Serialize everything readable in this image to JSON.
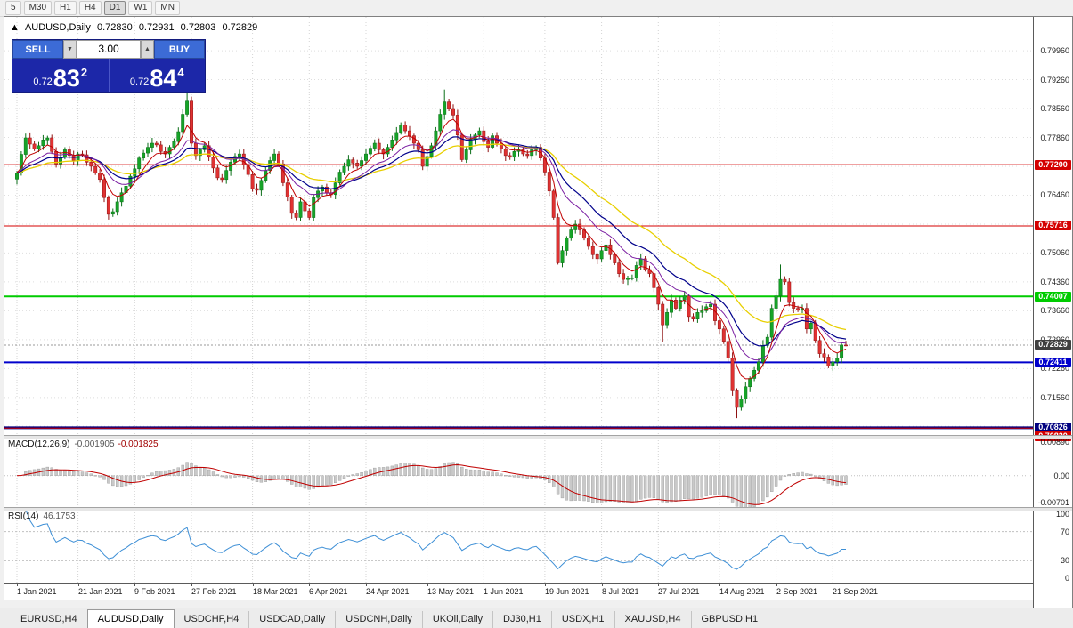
{
  "toolbar": {
    "periods": [
      "5",
      "M30",
      "H1",
      "H4",
      "D1",
      "W1",
      "MN"
    ],
    "active": "D1"
  },
  "chart": {
    "title": {
      "arrow": "▲",
      "symbol": "AUDUSD,Daily",
      "o": "0.72830",
      "h": "0.72931",
      "l": "0.72803",
      "c": "0.72829"
    },
    "trade_panel": {
      "sell_label": "SELL",
      "buy_label": "BUY",
      "volume": "3.00",
      "spin_down": "▼",
      "spin_up": "▲",
      "bid": {
        "prefix": "0.72",
        "big": "83",
        "sup": "2"
      },
      "ask": {
        "prefix": "0.72",
        "big": "84",
        "sup": "4"
      }
    }
  },
  "chart_data": {
    "type": "candlestick",
    "symbol": "AUDUSD",
    "timeframe": "Daily",
    "price_scale": {
      "max": 0.8078,
      "min": 0.70652,
      "grid_start": 0.7996,
      "grid_step": 0.007,
      "decimals": 5
    },
    "first_open": 0.7685,
    "closes": [
      0.77,
      0.7745,
      0.7785,
      0.777,
      0.7758,
      0.7766,
      0.778,
      0.7785,
      0.7752,
      0.7722,
      0.7738,
      0.7756,
      0.7742,
      0.773,
      0.7746,
      0.7744,
      0.7726,
      0.7716,
      0.77,
      0.7684,
      0.764,
      0.76,
      0.7606,
      0.763,
      0.7652,
      0.7668,
      0.7692,
      0.771,
      0.7736,
      0.7748,
      0.7762,
      0.7772,
      0.7768,
      0.7752,
      0.7746,
      0.7762,
      0.7776,
      0.78,
      0.7842,
      0.7876,
      0.7772,
      0.7742,
      0.7756,
      0.7766,
      0.7738,
      0.7712,
      0.7688,
      0.7684,
      0.7706,
      0.7726,
      0.774,
      0.7746,
      0.772,
      0.7696,
      0.7662,
      0.7658,
      0.7682,
      0.7706,
      0.773,
      0.7746,
      0.7722,
      0.7676,
      0.7642,
      0.7602,
      0.7592,
      0.763,
      0.7608,
      0.7592,
      0.764,
      0.7656,
      0.7666,
      0.7652,
      0.7648,
      0.7676,
      0.7702,
      0.7716,
      0.7732,
      0.7724,
      0.7716,
      0.773,
      0.7746,
      0.776,
      0.7772,
      0.7756,
      0.7746,
      0.7762,
      0.778,
      0.7798,
      0.7816,
      0.7802,
      0.779,
      0.7772,
      0.7756,
      0.7716,
      0.774,
      0.7766,
      0.7802,
      0.7842,
      0.7872,
      0.7856,
      0.784,
      0.7792,
      0.7732,
      0.7756,
      0.7782,
      0.7792,
      0.7802,
      0.7776,
      0.7762,
      0.779,
      0.7772,
      0.7758,
      0.7742,
      0.7738,
      0.7752,
      0.7756,
      0.7746,
      0.7742,
      0.7756,
      0.7762,
      0.7736,
      0.7702,
      0.7656,
      0.7592,
      0.7482,
      0.7512,
      0.7542,
      0.7562,
      0.7576,
      0.7562,
      0.7542,
      0.7522,
      0.7502,
      0.7492,
      0.7512,
      0.7526,
      0.7502,
      0.7482,
      0.7456,
      0.7442,
      0.7446,
      0.7446,
      0.7476,
      0.7492,
      0.7466,
      0.7456,
      0.7422,
      0.7382,
      0.7332,
      0.7362,
      0.7392,
      0.7372,
      0.7392,
      0.7402,
      0.7352,
      0.7346,
      0.7362,
      0.7366,
      0.7376,
      0.7382,
      0.7342,
      0.7322,
      0.7292,
      0.7252,
      0.7172,
      0.7132,
      0.7152,
      0.7182,
      0.7202,
      0.7222,
      0.7242,
      0.7282,
      0.7302,
      0.7372,
      0.7402,
      0.7442,
      0.7436,
      0.7386,
      0.7372,
      0.7368,
      0.7372,
      0.7322,
      0.7336,
      0.7294,
      0.7262,
      0.7254,
      0.7232,
      0.7242,
      0.7252,
      0.7283,
      0.72829
    ],
    "overrides": {
      "39": {
        "h": 0.79
      },
      "98": {
        "h": 0.7902
      },
      "124": {
        "l": 0.7478
      },
      "148": {
        "l": 0.729
      },
      "165": {
        "l": 0.7106
      },
      "175": {
        "h": 0.7478
      },
      "187": {
        "l": 0.722
      },
      "190": {
        "o": 0.7283,
        "h": 0.72931,
        "l": 0.72803,
        "c": 0.72829
      }
    },
    "hlines": [
      {
        "price": 0.772,
        "label": "0.77200",
        "color": "#d40000",
        "width": 1
      },
      {
        "price": 0.75716,
        "label": "0.75716",
        "color": "#d40000",
        "width": 1
      },
      {
        "price": 0.74007,
        "label": "0.74007",
        "color": "#00cc00",
        "width": 2
      },
      {
        "price": 0.72411,
        "label": "0.72411",
        "color": "#0000cc",
        "width": 2
      },
      {
        "price": 0.70826,
        "label": "0.70826",
        "color": "#000080",
        "width": 3
      },
      {
        "price": 0.7082,
        "label": "0.70820",
        "color": "#d40000",
        "width": 1
      }
    ],
    "current_price": {
      "value": 0.72829,
      "label": "0.72829",
      "badge_color": "#404040"
    },
    "mas": [
      {
        "period": 34,
        "color": "#e8cf00",
        "width": 1.3
      },
      {
        "period": 20,
        "color": "#00008b",
        "width": 1.2
      },
      {
        "period": 13,
        "color": "#7b1fa2",
        "width": 1
      },
      {
        "period": 6,
        "color": "#c00000",
        "width": 1
      }
    ],
    "colors": {
      "up": "#16a428",
      "up_edge": "#0b6e18",
      "down": "#e03232",
      "down_edge": "#8f1212",
      "grid": "#dedede",
      "vgrid": "#d4d4d4",
      "macd_hist": "#c9c9c9",
      "macd_hist_edge": "#9a9a9a",
      "macd_signal": "#c00000",
      "rsi_line": "#3d8fd6",
      "level_line": "#c0c0c0"
    },
    "x_labels": [
      {
        "day": 0,
        "text": "1 Jan 2021"
      },
      {
        "day": 14,
        "text": "21 Jan 2021"
      },
      {
        "day": 27,
        "text": "9 Feb 2021"
      },
      {
        "day": 40,
        "text": "27 Feb 2021"
      },
      {
        "day": 54,
        "text": "18 Mar 2021"
      },
      {
        "day": 67,
        "text": "6 Apr 2021"
      },
      {
        "day": 80,
        "text": "24 Apr 2021"
      },
      {
        "day": 94,
        "text": "13 May 2021"
      },
      {
        "day": 107,
        "text": "1 Jun 2021"
      },
      {
        "day": 121,
        "text": "19 Jun 2021"
      },
      {
        "day": 134,
        "text": "8 Jul 2021"
      },
      {
        "day": 147,
        "text": "27 Jul 2021"
      },
      {
        "day": 161,
        "text": "14 Aug 2021"
      },
      {
        "day": 174,
        "text": "2 Sep 2021"
      },
      {
        "day": 187,
        "text": "21 Sep 2021"
      }
    ],
    "macd": {
      "label": "MACD(12,26,9)",
      "value1": "-0.001905",
      "value2": "-0.001825",
      "fast": 12,
      "slow": 26,
      "signal": 9,
      "max": 0.009,
      "min": -0.0074,
      "axis": [
        {
          "v": 0.0089,
          "t": "0.00890"
        },
        {
          "v": 0,
          "t": "0.00"
        },
        {
          "v": -0.00701,
          "t": "-0.00701"
        }
      ]
    },
    "rsi": {
      "label": "RSI(14)",
      "value_text": "46.1753",
      "period": 14,
      "levels": [
        70,
        30
      ],
      "axis": [
        {
          "v": 100,
          "t": "100"
        },
        {
          "v": 70,
          "t": "70"
        },
        {
          "v": 30,
          "t": "30"
        },
        {
          "v": 0,
          "t": "0"
        }
      ]
    }
  },
  "bottom_tabs": {
    "items": [
      "EURUSD,H4",
      "AUDUSD,Daily",
      "USDCHF,H4",
      "USDCAD,Daily",
      "USDCNH,Daily",
      "UKOil,Daily",
      "DJ30,H1",
      "USDX,H1",
      "XAUUSD,H4",
      "GBPUSD,H1"
    ],
    "active": "AUDUSD,Daily"
  }
}
